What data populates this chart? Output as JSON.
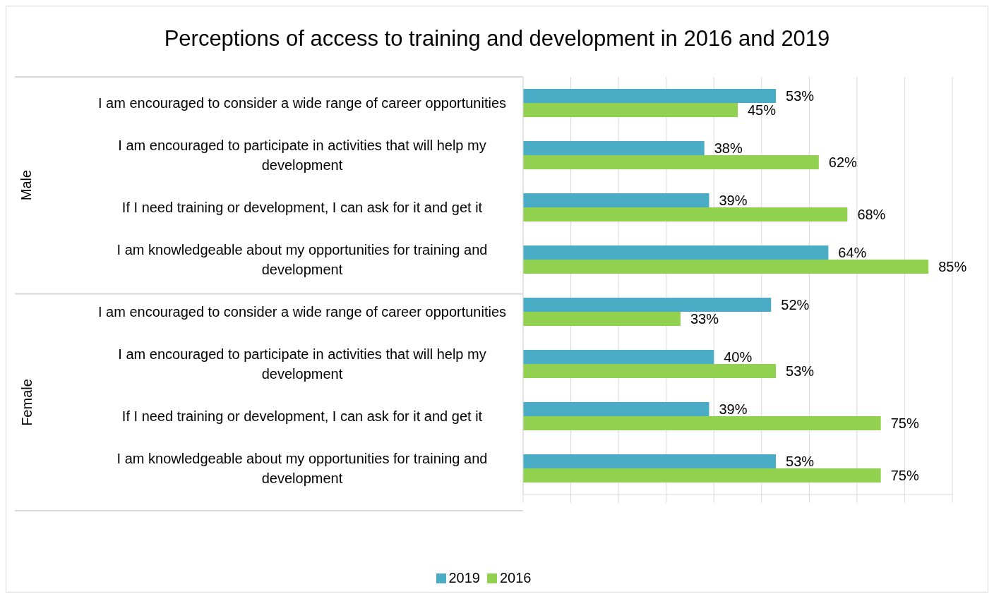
{
  "chart_data": {
    "type": "bar",
    "orientation": "horizontal",
    "title": "Perceptions of access to training and development in 2016 and 2019",
    "categories": [
      "I am encouraged to consider a wide range of career opportunities",
      "I am encouraged to participate in activities that will help my development",
      "If I need training or development, I can ask for it and get it",
      "I am knowledgeable about my opportunities for training and development",
      "I am encouraged to consider a wide range of career opportunities",
      "I am encouraged to participate in activities that will help my development",
      "If I need training or development, I can ask for it and get it",
      "I am knowledgeable about my opportunities for training and development"
    ],
    "series": [
      {
        "name": "2019",
        "color": "#4bacc6",
        "values": [
          53,
          38,
          39,
          64,
          52,
          40,
          39,
          53
        ],
        "value_labels": [
          "53%",
          "38%",
          "39%",
          "64%",
          "52%",
          "40%",
          "39%",
          "53%"
        ]
      },
      {
        "name": "2016",
        "color": "#92d050",
        "values": [
          45,
          62,
          68,
          85,
          33,
          53,
          75,
          75
        ],
        "value_labels": [
          "45%",
          "62%",
          "68%",
          "85%",
          "33%",
          "53%",
          "75%",
          "75%"
        ]
      }
    ],
    "annotations": [
      "Male",
      "Female"
    ],
    "tick_labels": "y",
    "grid": "x",
    "legend": "bottom"
  }
}
